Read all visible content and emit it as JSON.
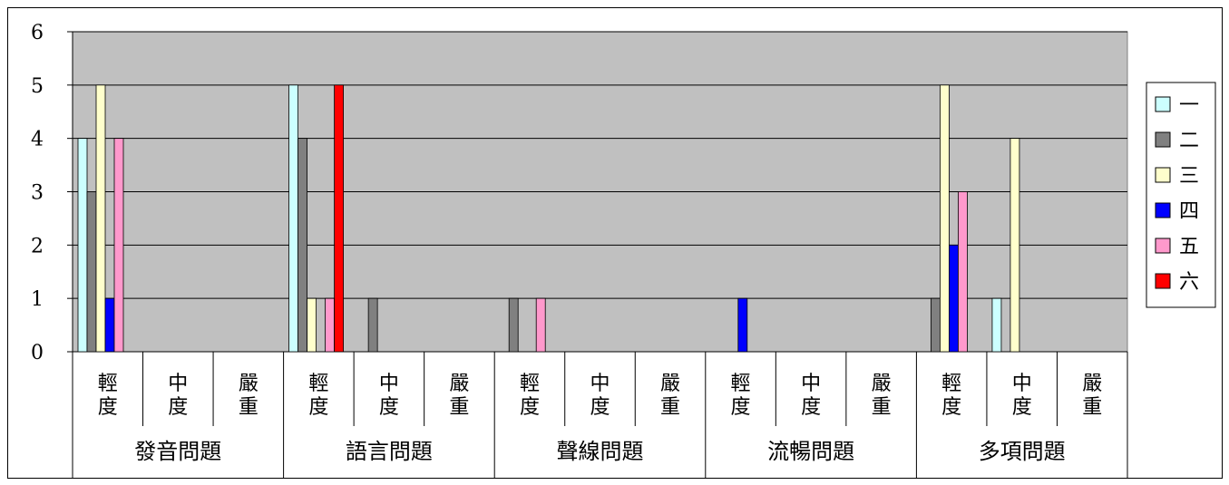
{
  "chart_data": {
    "type": "bar",
    "title": "",
    "xlabel": "",
    "ylabel": "",
    "ylim": [
      0,
      6
    ],
    "yticks": [
      "0",
      "1",
      "2",
      "3",
      "4",
      "5",
      "6"
    ],
    "grid": true,
    "legend_position": "right",
    "groups": [
      {
        "name": "發音問題",
        "subcategories": [
          "輕度",
          "中度",
          "嚴重"
        ]
      },
      {
        "name": "語言問題",
        "subcategories": [
          "輕度",
          "中度",
          "嚴重"
        ]
      },
      {
        "name": "聲線問題",
        "subcategories": [
          "輕度",
          "中度",
          "嚴重"
        ]
      },
      {
        "name": "流暢問題",
        "subcategories": [
          "輕度",
          "中度",
          "嚴重"
        ]
      },
      {
        "name": "多項問題",
        "subcategories": [
          "輕度",
          "中度",
          "嚴重"
        ]
      }
    ],
    "categories": [
      "發音問題 輕度",
      "發音問題 中度",
      "發音問題 嚴重",
      "語言問題 輕度",
      "語言問題 中度",
      "語言問題 嚴重",
      "聲線問題 輕度",
      "聲線問題 中度",
      "聲線問題 嚴重",
      "流暢問題 輕度",
      "流暢問題 中度",
      "流暢問題 嚴重",
      "多項問題 輕度",
      "多項問題 中度",
      "多項問題 嚴重"
    ],
    "series": [
      {
        "name": "一",
        "color": "#ccffff",
        "values": [
          4,
          0,
          0,
          5,
          0,
          0,
          0,
          0,
          0,
          0,
          0,
          0,
          0,
          1,
          0
        ]
      },
      {
        "name": "二",
        "color": "#808080",
        "values": [
          3,
          0,
          0,
          4,
          1,
          0,
          1,
          0,
          0,
          0,
          0,
          0,
          1,
          0,
          0
        ]
      },
      {
        "name": "三",
        "color": "#ffffcc",
        "values": [
          5,
          0,
          0,
          1,
          0,
          0,
          0,
          0,
          0,
          0,
          0,
          0,
          5,
          4,
          0
        ]
      },
      {
        "name": "四",
        "color": "#0000ff",
        "values": [
          1,
          0,
          0,
          0,
          0,
          0,
          0,
          0,
          0,
          1,
          0,
          0,
          2,
          0,
          0
        ]
      },
      {
        "name": "五",
        "color": "#ff99cc",
        "values": [
          4,
          0,
          0,
          1,
          0,
          0,
          1,
          0,
          0,
          0,
          0,
          0,
          3,
          0,
          0
        ]
      },
      {
        "name": "六",
        "color": "#ff0000",
        "values": [
          0,
          0,
          0,
          5,
          0,
          0,
          0,
          0,
          0,
          0,
          0,
          0,
          0,
          0,
          0
        ]
      }
    ],
    "plot_background": "#c0c0c0"
  }
}
